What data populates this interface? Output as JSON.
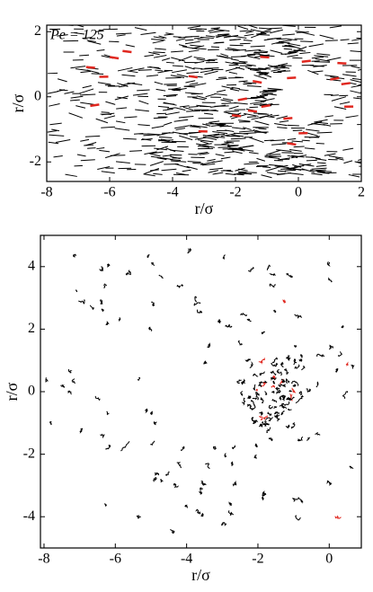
{
  "chart_data": [
    {
      "type": "trajectory",
      "annotation": "Pe = 125",
      "xlabel": "r/σ",
      "ylabel": "r/σ",
      "xlim": [
        -8,
        2
      ],
      "ylim": [
        -2.6,
        2.2
      ],
      "xticks": [
        -8,
        -6,
        -4,
        -2,
        0,
        2
      ],
      "yticks": [
        -2,
        0,
        2
      ],
      "color": "#000000",
      "highlight_color": "#e0271f"
    },
    {
      "type": "trajectory",
      "xlabel": "r/σ",
      "ylabel": "r/σ",
      "xlim": [
        -8.1,
        0.9
      ],
      "ylim": [
        -5,
        5
      ],
      "xticks": [
        -8,
        -6,
        -4,
        -2,
        0
      ],
      "yticks": [
        -4,
        -2,
        0,
        2,
        4
      ],
      "color": "#000000",
      "highlight_color": "#e0271f"
    }
  ]
}
